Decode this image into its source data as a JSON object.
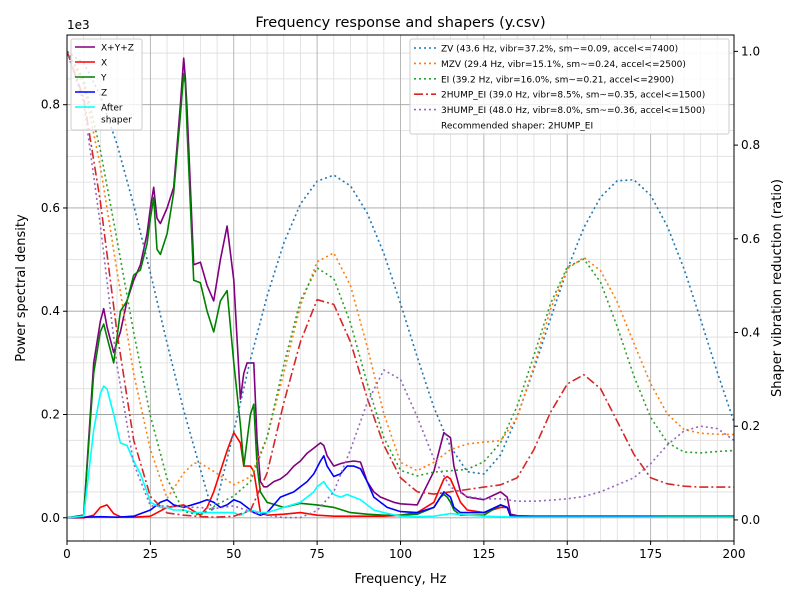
{
  "chart_data": {
    "type": "line",
    "title": "Frequency response and shapers (y.csv)",
    "xlabel": "Frequency, Hz",
    "ylabel": "Power spectral density",
    "ylabel_right": "Shaper vibration reduction (ratio)",
    "y_offset_label": "1e3",
    "xlim": [
      0,
      200
    ],
    "ylim": [
      -0.045,
      0.935
    ],
    "ylim_right": [
      -0.045,
      1.035
    ],
    "x_ticks": [
      0,
      25,
      50,
      75,
      100,
      125,
      150,
      175,
      200
    ],
    "x_tick_labels": [
      "0",
      "25",
      "50",
      "75",
      "100",
      "125",
      "150",
      "175",
      "200"
    ],
    "y_ticks": [
      0.0,
      0.2,
      0.4,
      0.6,
      0.8
    ],
    "y_tick_labels": [
      "0.0",
      "0.2",
      "0.4",
      "0.6",
      "0.8"
    ],
    "y2_ticks": [
      0.0,
      0.2,
      0.4,
      0.6,
      0.8,
      1.0
    ],
    "y2_tick_labels": [
      "0.0",
      "0.2",
      "0.4",
      "0.6",
      "0.8",
      "1.0"
    ],
    "grid": true,
    "psd_series": [
      {
        "name": "X+Y+Z",
        "color": "#800080",
        "x": [
          0,
          5,
          8,
          10,
          11,
          12,
          14,
          16,
          18,
          20,
          22,
          24,
          25,
          26,
          27,
          28,
          30,
          32,
          34,
          35,
          35.5,
          36,
          38,
          40,
          42,
          44,
          46,
          48,
          50,
          52,
          53,
          54,
          55,
          56,
          57,
          58,
          59,
          60,
          62,
          64,
          66,
          68,
          70,
          72,
          74,
          75,
          76,
          77,
          78,
          80,
          82,
          84,
          86,
          88,
          90,
          92,
          94,
          96,
          98,
          100,
          105,
          110,
          112,
          113,
          114,
          115,
          116,
          118,
          120,
          125,
          130,
          132,
          133,
          135,
          140,
          145,
          150,
          160,
          170,
          180,
          190,
          200
        ],
        "y": [
          0,
          0.005,
          0.3,
          0.38,
          0.405,
          0.37,
          0.32,
          0.36,
          0.42,
          0.46,
          0.49,
          0.55,
          0.6,
          0.64,
          0.58,
          0.57,
          0.6,
          0.64,
          0.8,
          0.89,
          0.85,
          0.79,
          0.49,
          0.495,
          0.45,
          0.42,
          0.5,
          0.565,
          0.46,
          0.23,
          0.28,
          0.3,
          0.3,
          0.3,
          0.15,
          0.07,
          0.06,
          0.06,
          0.07,
          0.075,
          0.085,
          0.1,
          0.11,
          0.125,
          0.135,
          0.14,
          0.145,
          0.14,
          0.12,
          0.1,
          0.105,
          0.108,
          0.11,
          0.108,
          0.07,
          0.05,
          0.04,
          0.035,
          0.03,
          0.027,
          0.025,
          0.09,
          0.14,
          0.165,
          0.16,
          0.155,
          0.1,
          0.05,
          0.04,
          0.035,
          0.05,
          0.04,
          0.007,
          0.004,
          0.003,
          0.003,
          0.003,
          0.003,
          0.003,
          0.003,
          0.003,
          0.003
        ]
      },
      {
        "name": "X",
        "color": "#ff0000",
        "x": [
          0,
          5,
          8,
          10,
          12,
          14,
          16,
          18,
          20,
          25,
          30,
          35,
          40,
          42,
          44,
          46,
          48,
          50,
          52,
          53,
          54,
          55,
          56,
          57,
          58,
          60,
          65,
          70,
          75,
          80,
          85,
          90,
          95,
          100,
          105,
          110,
          112,
          113,
          114,
          115,
          116,
          118,
          120,
          125,
          130,
          132,
          133,
          135,
          140,
          150,
          160,
          170,
          180,
          190,
          200
        ],
        "y": [
          0,
          0,
          0.005,
          0.02,
          0.025,
          0.008,
          0.002,
          0.001,
          0.001,
          0.003,
          0.02,
          0.025,
          0.005,
          0.02,
          0.05,
          0.09,
          0.13,
          0.165,
          0.145,
          0.1,
          0.1,
          0.1,
          0.09,
          0.05,
          0.01,
          0.005,
          0.007,
          0.01,
          0.005,
          0.003,
          0.003,
          0.003,
          0.003,
          0.005,
          0.01,
          0.03,
          0.06,
          0.075,
          0.08,
          0.075,
          0.06,
          0.03,
          0.015,
          0.01,
          0.02,
          0.02,
          0.002,
          0.001,
          0.001,
          0.001,
          0.001,
          0.001,
          0.001,
          0.001,
          0.001
        ]
      },
      {
        "name": "Y",
        "color": "#008000",
        "x": [
          0,
          5,
          8,
          10,
          11,
          12,
          14,
          16,
          18,
          20,
          22,
          24,
          25,
          26,
          27,
          28,
          30,
          32,
          34,
          35,
          35.5,
          36,
          38,
          40,
          42,
          44,
          46,
          48,
          50,
          52,
          53,
          54,
          55,
          56,
          57,
          58,
          60,
          65,
          70,
          75,
          80,
          85,
          90,
          95,
          100,
          105,
          110,
          112,
          113,
          114,
          115,
          116,
          118,
          120,
          125,
          130,
          132,
          133,
          135,
          140,
          150,
          160,
          170,
          180,
          190,
          200
        ],
        "y": [
          0,
          0.005,
          0.28,
          0.36,
          0.375,
          0.35,
          0.3,
          0.4,
          0.42,
          0.47,
          0.48,
          0.53,
          0.58,
          0.62,
          0.52,
          0.51,
          0.55,
          0.63,
          0.78,
          0.86,
          0.84,
          0.75,
          0.46,
          0.455,
          0.4,
          0.36,
          0.42,
          0.44,
          0.3,
          0.18,
          0.1,
          0.15,
          0.2,
          0.22,
          0.1,
          0.05,
          0.03,
          0.02,
          0.028,
          0.025,
          0.02,
          0.01,
          0.007,
          0.005,
          0.005,
          0.007,
          0.02,
          0.04,
          0.045,
          0.04,
          0.03,
          0.015,
          0.005,
          0.005,
          0.005,
          0.025,
          0.02,
          0.004,
          0.003,
          0.003,
          0.003,
          0.003,
          0.003,
          0.003,
          0.003,
          0.003
        ]
      },
      {
        "name": "Z",
        "color": "#0000ff",
        "x": [
          0,
          5,
          10,
          15,
          20,
          25,
          28,
          30,
          32,
          35,
          40,
          42,
          44,
          46,
          48,
          50,
          52,
          54,
          56,
          58,
          60,
          62,
          64,
          66,
          68,
          70,
          72,
          74,
          76,
          77,
          78,
          80,
          82,
          84,
          86,
          88,
          90,
          92,
          94,
          96,
          100,
          105,
          110,
          112,
          113,
          114,
          115,
          116,
          118,
          120,
          125,
          130,
          132,
          133,
          135,
          140,
          150,
          160,
          170,
          180,
          190,
          200
        ],
        "y": [
          0,
          0.001,
          0.002,
          0.001,
          0.003,
          0.015,
          0.03,
          0.035,
          0.025,
          0.02,
          0.03,
          0.035,
          0.03,
          0.02,
          0.025,
          0.035,
          0.03,
          0.02,
          0.01,
          0.005,
          0.01,
          0.025,
          0.04,
          0.045,
          0.05,
          0.06,
          0.07,
          0.085,
          0.11,
          0.12,
          0.1,
          0.08,
          0.085,
          0.1,
          0.1,
          0.095,
          0.07,
          0.04,
          0.03,
          0.02,
          0.012,
          0.01,
          0.02,
          0.04,
          0.05,
          0.045,
          0.04,
          0.02,
          0.01,
          0.01,
          0.01,
          0.025,
          0.02,
          0.003,
          0.002,
          0.002,
          0.002,
          0.002,
          0.002,
          0.001,
          0.001,
          0.001
        ]
      },
      {
        "name": "After\nshaper",
        "color": "#00ffff",
        "x": [
          0,
          5,
          8,
          10,
          11,
          12,
          14,
          16,
          18,
          20,
          22,
          24,
          25,
          28,
          30,
          32,
          35,
          38,
          40,
          45,
          50,
          52,
          55,
          58,
          60,
          65,
          70,
          72,
          74,
          75,
          77,
          78,
          80,
          82,
          84,
          86,
          88,
          90,
          92,
          95,
          100,
          105,
          110,
          115,
          120,
          125,
          130,
          135,
          140,
          150,
          160,
          170,
          180,
          190,
          200
        ],
        "y": [
          0,
          0.003,
          0.17,
          0.24,
          0.255,
          0.25,
          0.2,
          0.145,
          0.14,
          0.11,
          0.085,
          0.05,
          0.03,
          0.02,
          0.02,
          0.015,
          0.015,
          0.01,
          0.01,
          0.01,
          0.01,
          0.005,
          0.015,
          0.01,
          0.01,
          0.02,
          0.03,
          0.04,
          0.05,
          0.06,
          0.07,
          0.06,
          0.045,
          0.04,
          0.045,
          0.04,
          0.035,
          0.025,
          0.015,
          0.01,
          0.003,
          0.002,
          0.003,
          0.008,
          0.005,
          0.003,
          0.002,
          0.001,
          0.001,
          0.001,
          0.001,
          0.001,
          0.001,
          0.001,
          0.001
        ]
      }
    ],
    "shaper_series": [
      {
        "name": "ZV (43.6 Hz, vibr=37.2%, sm~=0.09, accel<=7400)",
        "color": "#1f77b4",
        "dash": "dotted",
        "x": [
          0,
          5,
          10,
          15,
          20,
          25,
          30,
          35,
          40,
          43.6,
          45,
          50,
          55,
          60,
          65,
          70,
          75,
          80,
          85,
          90,
          95,
          100,
          105,
          110,
          115,
          120,
          125,
          130,
          135,
          140,
          145,
          150,
          155,
          160,
          165,
          170,
          175,
          180,
          185,
          190,
          195,
          200
        ],
        "y": [
          1.0,
          0.975,
          0.906,
          0.802,
          0.672,
          0.527,
          0.377,
          0.234,
          0.108,
          0.018,
          0.042,
          0.189,
          0.342,
          0.478,
          0.591,
          0.674,
          0.723,
          0.736,
          0.713,
          0.655,
          0.569,
          0.462,
          0.348,
          0.24,
          0.156,
          0.103,
          0.098,
          0.139,
          0.221,
          0.322,
          0.43,
          0.535,
          0.624,
          0.689,
          0.724,
          0.726,
          0.693,
          0.627,
          0.536,
          0.428,
          0.315,
          0.209
        ]
      },
      {
        "name": "MZV (29.4 Hz, vibr=15.1%, sm~=0.24, accel<=2500)",
        "color": "#ff7f0e",
        "dash": "dotted",
        "x": [
          0,
          5,
          10,
          15,
          20,
          25,
          30,
          35,
          38,
          40,
          45,
          50,
          55,
          60,
          65,
          70,
          75,
          80,
          85,
          90,
          95,
          100,
          105,
          110,
          115,
          120,
          125,
          130,
          135,
          140,
          145,
          150,
          155,
          160,
          165,
          170,
          175,
          180,
          185,
          190,
          195,
          200
        ],
        "y": [
          1.0,
          0.93,
          0.755,
          0.531,
          0.312,
          0.15,
          0.046,
          0.1,
          0.121,
          0.121,
          0.099,
          0.075,
          0.092,
          0.177,
          0.313,
          0.457,
          0.551,
          0.57,
          0.5,
          0.37,
          0.227,
          0.123,
          0.105,
          0.123,
          0.15,
          0.162,
          0.166,
          0.169,
          0.218,
          0.328,
          0.45,
          0.536,
          0.56,
          0.532,
          0.465,
          0.377,
          0.291,
          0.226,
          0.193,
          0.185,
          0.183,
          0.182
        ]
      },
      {
        "name": "EI (39.2 Hz, vibr=16.0%, sm~=0.21, accel<=2900)",
        "color": "#2ca02c",
        "dash": "dotted",
        "x": [
          0,
          5,
          10,
          15,
          20,
          25,
          30,
          35,
          40,
          45,
          50,
          55,
          60,
          65,
          70,
          75,
          80,
          85,
          90,
          95,
          100,
          105,
          110,
          115,
          120,
          125,
          130,
          135,
          140,
          145,
          150,
          155,
          160,
          165,
          170,
          175,
          180,
          185,
          190,
          195,
          200
        ],
        "y": [
          1.0,
          0.94,
          0.79,
          0.598,
          0.4,
          0.222,
          0.088,
          0.018,
          0.01,
          0.033,
          0.051,
          0.082,
          0.176,
          0.331,
          0.468,
          0.538,
          0.515,
          0.42,
          0.292,
          0.176,
          0.106,
          0.094,
          0.102,
          0.105,
          0.108,
          0.124,
          0.165,
          0.243,
          0.351,
          0.462,
          0.54,
          0.557,
          0.507,
          0.412,
          0.307,
          0.219,
          0.165,
          0.145,
          0.143,
          0.146,
          0.148
        ]
      },
      {
        "name": "2HUMP_EI (39.0 Hz, vibr=8.5%, sm~=0.35, accel<=1500)",
        "color": "#d62728",
        "dash": "dashdot",
        "x": [
          0,
          5,
          10,
          15,
          20,
          25,
          30,
          35,
          40,
          45,
          50,
          55,
          60,
          65,
          70,
          75,
          80,
          85,
          90,
          95,
          100,
          105,
          110,
          115,
          120,
          125,
          130,
          135,
          140,
          145,
          150,
          155,
          160,
          165,
          170,
          175,
          180,
          185,
          190,
          195,
          200
        ],
        "y": [
          1.0,
          0.9,
          0.68,
          0.4,
          0.17,
          0.05,
          0.015,
          0.01,
          0.007,
          0.006,
          0.008,
          0.02,
          0.1,
          0.25,
          0.38,
          0.47,
          0.46,
          0.38,
          0.26,
          0.16,
          0.09,
          0.06,
          0.055,
          0.06,
          0.065,
          0.07,
          0.075,
          0.09,
          0.15,
          0.23,
          0.29,
          0.31,
          0.28,
          0.21,
          0.14,
          0.09,
          0.077,
          0.072,
          0.07,
          0.07,
          0.07
        ]
      },
      {
        "name": "3HUMP_EI (48.0 Hz, vibr=8.0%, sm~=0.36, accel<=1500)",
        "color": "#9467bd",
        "dash": "dotted",
        "x": [
          0,
          5,
          10,
          15,
          20,
          25,
          30,
          35,
          40,
          45,
          50,
          55,
          60,
          65,
          70,
          75,
          80,
          85,
          90,
          95,
          100,
          105,
          110,
          115,
          120,
          125,
          130,
          135,
          140,
          145,
          150,
          155,
          160,
          165,
          170,
          175,
          180,
          185,
          190,
          195,
          200
        ],
        "y": [
          1.0,
          0.89,
          0.63,
          0.33,
          0.12,
          0.03,
          0.03,
          0.028,
          0.026,
          0.025,
          0.03,
          0.018,
          0.01,
          0.005,
          0.005,
          0.02,
          0.06,
          0.15,
          0.25,
          0.32,
          0.3,
          0.22,
          0.13,
          0.07,
          0.05,
          0.045,
          0.045,
          0.04,
          0.04,
          0.042,
          0.045,
          0.05,
          0.06,
          0.075,
          0.09,
          0.12,
          0.16,
          0.19,
          0.2,
          0.195,
          0.17
        ]
      }
    ],
    "legend_left": {
      "placement": "top-left",
      "entries": [
        "X+Y+Z",
        "X",
        "Y",
        "Z",
        "After\nshaper"
      ]
    },
    "legend_right": {
      "placement": "top-right",
      "entries": [
        "ZV (43.6 Hz, vibr=37.2%, sm~=0.09, accel<=7400)",
        "MZV (29.4 Hz, vibr=15.1%, sm~=0.24, accel<=2500)",
        "EI (39.2 Hz, vibr=16.0%, sm~=0.21, accel<=2900)",
        "2HUMP_EI (39.0 Hz, vibr=8.5%, sm~=0.35, accel<=1500)",
        "3HUMP_EI (48.0 Hz, vibr=8.0%, sm~=0.36, accel<=1500)"
      ],
      "note": "Recommended shaper: 2HUMP_EI"
    }
  }
}
